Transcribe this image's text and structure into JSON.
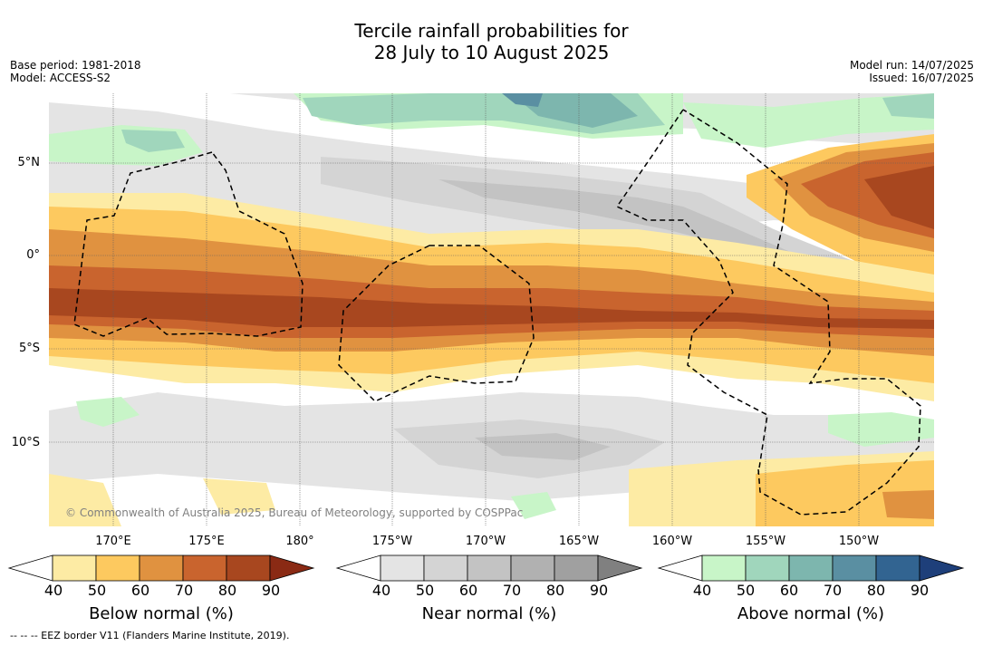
{
  "title": {
    "line1": "Tercile rainfall probabilities for",
    "line2": "28 July to 10 August 2025"
  },
  "meta_left": {
    "base_period": "Base period: 1981-2018",
    "model": "Model: ACCESS-S2"
  },
  "meta_right": {
    "model_run": "Model run: 14/07/2025",
    "issued": "Issued: 16/07/2025"
  },
  "map": {
    "lat_labels": [
      "5°N",
      "0°",
      "5°S",
      "10°S"
    ],
    "lon_labels": [
      "170°E",
      "175°E",
      "180°",
      "175°W",
      "170°W",
      "165°W",
      "160°W",
      "155°W",
      "150°W"
    ],
    "copyright": "© Commonwealth of Australia 2025, Bureau of Meteorology, supported by COSPPac"
  },
  "colorbars": {
    "ticks": [
      "40",
      "50",
      "60",
      "70",
      "80",
      "90"
    ],
    "below": {
      "label": "Below normal (%)",
      "colors": [
        "#fdeba4",
        "#fdc95f",
        "#e09240",
        "#c9642e",
        "#a8471f",
        "#8a2a14"
      ]
    },
    "near": {
      "label": "Near normal (%)",
      "colors": [
        "#e4e4e4",
        "#d4d4d4",
        "#c3c3c3",
        "#b1b1b1",
        "#a0a0a0",
        "#808080"
      ]
    },
    "above": {
      "label": "Above normal (%)",
      "colors": [
        "#c8f5c8",
        "#a0d6bc",
        "#7db6ae",
        "#5a8fa2",
        "#326491",
        "#1e3f7a"
      ]
    }
  },
  "footer": "--  --  -- EEZ border V11 (Flanders Marine Institute, 2019)."
}
